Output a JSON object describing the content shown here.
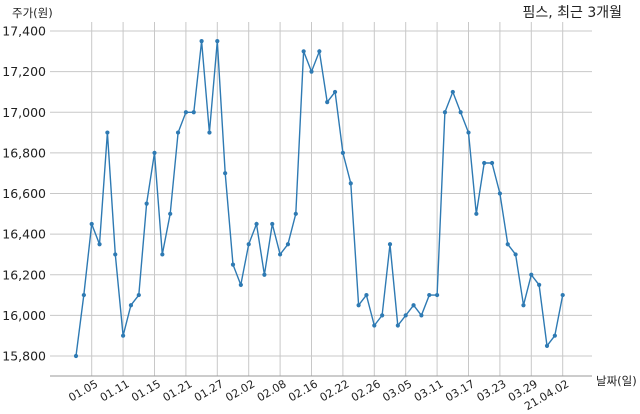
{
  "chart_data": {
    "type": "line",
    "title": "핌스, 최근 3개월",
    "ylabel": "주가(원)",
    "xlabel": "날짜(일)",
    "ylim": [
      15700,
      17420
    ],
    "yticks": [
      15800,
      16000,
      16200,
      16400,
      16600,
      16800,
      17000,
      17200,
      17400
    ],
    "ytick_labels": [
      "15,800",
      "16,000",
      "16,200",
      "16,400",
      "16,600",
      "16,800",
      "17,000",
      "17,200",
      "17,400"
    ],
    "xtick_labels": [
      "01.05",
      "01.11",
      "01.15",
      "01.21",
      "01.27",
      "02.02",
      "02.08",
      "02.16",
      "02.22",
      "02.26",
      "03.05",
      "03.11",
      "03.17",
      "03.23",
      "03.29",
      "21.04.02"
    ],
    "xtick_index": [
      2,
      6,
      10,
      14,
      18,
      22,
      26,
      30,
      34,
      38,
      42,
      46,
      50,
      54,
      58,
      62
    ],
    "grid": true,
    "color": "#2e7ab3",
    "series": [
      {
        "values": [
          15800,
          16100,
          16450,
          16350,
          16900,
          16300,
          15900,
          16050,
          16100,
          16550,
          16800,
          16300,
          16500,
          16900,
          17000,
          17000,
          17350,
          16900,
          17350,
          16700,
          16250,
          16150,
          16350,
          16450,
          16200,
          16450,
          16300,
          16350,
          16500,
          17300,
          17200,
          17300,
          17050,
          17100,
          16800,
          16650,
          16050,
          16100,
          15950,
          16000,
          16350,
          15950,
          16000,
          16050,
          16000,
          16100,
          16100,
          17000,
          17100,
          17000,
          16900,
          16500,
          16750,
          16750,
          16600,
          16350,
          16300,
          16050,
          16200,
          16150,
          15850,
          15900,
          16100
        ]
      }
    ]
  }
}
